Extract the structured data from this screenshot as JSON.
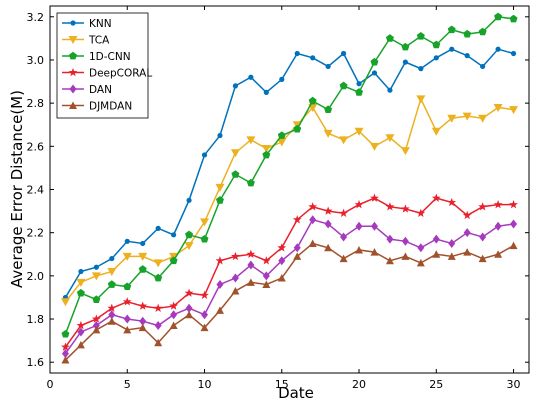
{
  "chart_data": {
    "type": "line",
    "title": "",
    "xlabel": "Date",
    "ylabel": "Average Error Distance(M)",
    "xlim": [
      0,
      31
    ],
    "ylim": [
      1.55,
      3.25
    ],
    "x_ticks": [
      0,
      5,
      10,
      15,
      20,
      25,
      30
    ],
    "y_ticks": [
      1.6,
      1.8,
      2.0,
      2.2,
      2.4,
      2.6,
      2.8,
      3.0,
      3.2
    ],
    "x_tick_labels": [
      "0",
      "5",
      "10",
      "15",
      "20",
      "25",
      "30"
    ],
    "y_tick_labels": [
      "1.6",
      "1.8",
      "2.0",
      "2.2",
      "2.4",
      "2.6",
      "2.8",
      "3.0",
      "3.2"
    ],
    "grid": false,
    "legend_position": "top-left",
    "x": [
      1,
      2,
      3,
      4,
      5,
      6,
      7,
      8,
      9,
      10,
      11,
      12,
      13,
      14,
      15,
      16,
      17,
      18,
      19,
      20,
      21,
      22,
      23,
      24,
      25,
      26,
      27,
      28,
      29,
      30
    ],
    "series": [
      {
        "name": "KNN",
        "color": "#0072BD",
        "marker": "circle",
        "values": [
          1.9,
          2.02,
          2.04,
          2.08,
          2.16,
          2.15,
          2.22,
          2.19,
          2.35,
          2.56,
          2.65,
          2.88,
          2.92,
          2.85,
          2.91,
          3.03,
          3.01,
          2.97,
          3.03,
          2.89,
          2.94,
          2.86,
          2.99,
          2.96,
          3.01,
          3.05,
          3.02,
          2.97,
          3.05,
          3.03
        ]
      },
      {
        "name": "TCA",
        "color": "#EDB120",
        "marker": "triangle-down",
        "values": [
          1.88,
          1.97,
          2.0,
          2.02,
          2.09,
          2.09,
          2.06,
          2.09,
          2.14,
          2.25,
          2.41,
          2.57,
          2.63,
          2.59,
          2.62,
          2.7,
          2.78,
          2.66,
          2.63,
          2.67,
          2.6,
          2.64,
          2.58,
          2.82,
          2.67,
          2.73,
          2.74,
          2.73,
          2.78,
          2.77
        ]
      },
      {
        "name": "1D-CNN",
        "color": "#17A329",
        "marker": "pentagon",
        "values": [
          1.73,
          1.92,
          1.89,
          1.96,
          1.95,
          2.03,
          1.99,
          2.07,
          2.19,
          2.17,
          2.35,
          2.47,
          2.43,
          2.56,
          2.65,
          2.68,
          2.81,
          2.77,
          2.88,
          2.85,
          2.99,
          3.1,
          3.06,
          3.11,
          3.07,
          3.14,
          3.12,
          3.13,
          3.2,
          3.19
        ]
      },
      {
        "name": "DeepCORAL",
        "color": "#E8212D",
        "marker": "star",
        "values": [
          1.67,
          1.77,
          1.8,
          1.85,
          1.88,
          1.86,
          1.85,
          1.86,
          1.92,
          1.91,
          2.07,
          2.09,
          2.1,
          2.07,
          2.13,
          2.26,
          2.32,
          2.3,
          2.29,
          2.33,
          2.36,
          2.32,
          2.31,
          2.29,
          2.36,
          2.34,
          2.28,
          2.32,
          2.33,
          2.33
        ]
      },
      {
        "name": "DAN",
        "color": "#A63ABF",
        "marker": "diamond",
        "values": [
          1.64,
          1.74,
          1.77,
          1.82,
          1.8,
          1.79,
          1.77,
          1.82,
          1.85,
          1.82,
          1.96,
          1.99,
          2.05,
          2.0,
          2.07,
          2.13,
          2.26,
          2.24,
          2.18,
          2.23,
          2.23,
          2.17,
          2.16,
          2.13,
          2.17,
          2.15,
          2.2,
          2.18,
          2.23,
          2.24
        ]
      },
      {
        "name": "DJMDAN",
        "color": "#A0522D",
        "marker": "triangle-up",
        "values": [
          1.61,
          1.68,
          1.75,
          1.79,
          1.75,
          1.76,
          1.69,
          1.77,
          1.82,
          1.76,
          1.84,
          1.93,
          1.97,
          1.96,
          1.99,
          2.09,
          2.15,
          2.13,
          2.08,
          2.12,
          2.11,
          2.07,
          2.09,
          2.06,
          2.1,
          2.09,
          2.11,
          2.08,
          2.1,
          2.14
        ]
      }
    ]
  }
}
